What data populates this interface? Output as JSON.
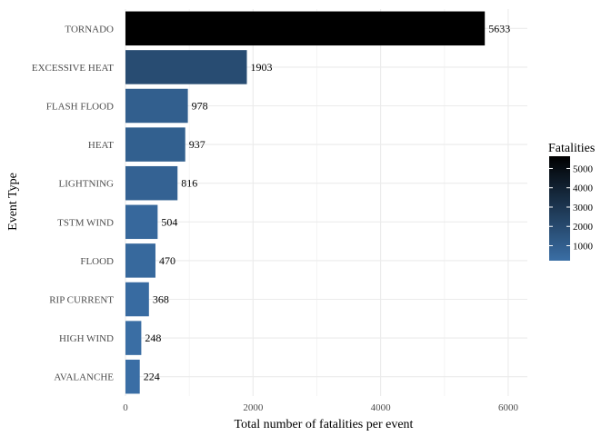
{
  "chart_data": {
    "type": "bar",
    "orientation": "horizontal",
    "categories": [
      "TORNADO",
      "EXCESSIVE HEAT",
      "FLASH FLOOD",
      "HEAT",
      "LIGHTNING",
      "TSTM WIND",
      "FLOOD",
      "RIP CURRENT",
      "HIGH WIND",
      "AVALANCHE"
    ],
    "values": [
      5633,
      1903,
      978,
      937,
      816,
      504,
      470,
      368,
      248,
      224
    ],
    "data_labels": [
      "5633",
      "1903",
      "978",
      "937",
      "816",
      "504",
      "470",
      "368",
      "248",
      "224"
    ],
    "title": "",
    "xlabel": "Total number of fatalities per event",
    "ylabel": "Event Type",
    "xlim": [
      0,
      6300
    ],
    "x_ticks": [
      0,
      2000,
      4000,
      6000
    ],
    "x_tick_labels": [
      "0",
      "2000",
      "4000",
      "6000"
    ],
    "grid": true,
    "legend": {
      "title": "Fatalities",
      "placement": "right",
      "type": "colorbar",
      "range": [
        224,
        5633
      ],
      "ticks": [
        1000,
        2000,
        3000,
        4000,
        5000
      ],
      "tick_labels": [
        "1000",
        "2000",
        "3000",
        "4000",
        "5000"
      ],
      "color_low": "#3a6ea5",
      "color_high": "#000000"
    }
  }
}
